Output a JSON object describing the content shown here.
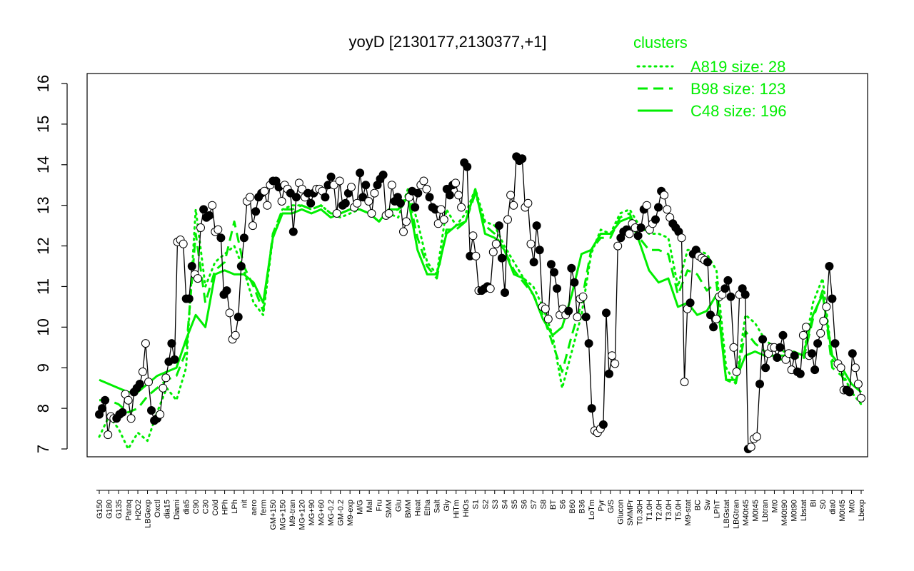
{
  "chart_data": {
    "type": "line",
    "title": "yoyD [2130177,2130377,+1]",
    "xlabel": "",
    "ylabel": "",
    "ylim": [
      7,
      16
    ],
    "yticks": [
      7,
      8,
      9,
      10,
      11,
      12,
      13,
      14,
      15,
      16
    ],
    "grid": false,
    "legend": {
      "title": "clusters",
      "placement": "top-right",
      "color": "#00ee00",
      "entries": [
        {
          "label": "A819 size: 28",
          "style": "dotted"
        },
        {
          "label": "B98 size: 123",
          "style": "dashed"
        },
        {
          "label": "C48 size: 196",
          "style": "solid"
        }
      ]
    },
    "x_tick_labels": [
      "G150",
      "G180",
      "G135",
      "Paraq",
      "H2O2",
      "LBGexp",
      "Oxctl",
      "dia15",
      "Diami",
      "dia5",
      "C90",
      "C30",
      "Cold",
      "HPh",
      "LPh",
      "nit",
      "aero",
      "ferm",
      "GM+150",
      "MG+150",
      "M9-tran",
      "MG+120",
      "MG+90",
      "MG+60",
      "MG-0.2",
      "GM-0.2",
      "M9-exp",
      "M/G",
      "Mal",
      "Fru",
      "SMM",
      "Glu",
      "BMM",
      "Heat",
      "Etha",
      "Salt",
      "Gly",
      "HiTm",
      "HiOs",
      "S1",
      "S2",
      "S3",
      "S4",
      "S5",
      "S6",
      "S7",
      "S8",
      "BT",
      "S6",
      "B60",
      "B36",
      "LoTm",
      "Pyr",
      "G/S",
      "Glucon",
      "SMMPr",
      "T0.30H",
      "T1.0H",
      "T2.0H",
      "T3.0H",
      "T5.0H",
      "M9-stat",
      "BC",
      "Sw",
      "LPhT",
      "LBGstat",
      "LBGtran",
      "M40t45",
      "M0t45",
      "Lbtran",
      "Mt0",
      "M40t90",
      "M0t90",
      "Lbstat",
      "BI",
      "S0",
      "dia0",
      "M0t45",
      "Mt0",
      "Lbexp"
    ],
    "series": [
      {
        "style": "solid",
        "color": "#000000",
        "marker_fill_pattern": [
          "black",
          "white"
        ],
        "values": [
          7.85,
          8.0,
          8.2,
          7.35,
          7.8,
          7.75,
          7.75,
          7.85,
          7.9,
          8.35,
          8.2,
          7.75,
          8.4,
          8.5,
          8.6,
          8.9,
          9.6,
          8.65,
          7.95,
          7.7,
          7.75,
          7.85,
          8.5,
          8.75,
          9.15,
          9.6,
          9.2,
          12.1,
          12.15,
          12.05,
          10.7,
          10.7,
          11.5,
          11.3,
          11.2,
          12.45,
          12.9,
          12.7,
          12.75,
          13.0,
          12.35,
          12.4,
          12.2,
          10.8,
          10.9,
          10.35,
          9.7,
          9.8,
          10.25,
          11.5,
          12.2,
          13.1,
          13.2,
          12.5,
          12.85,
          13.2,
          13.3,
          13.35,
          13.0,
          13.5,
          13.6,
          13.6,
          13.45,
          13.1,
          13.5,
          13.4,
          13.3,
          12.35,
          13.2,
          13.55,
          13.4,
          13.2,
          13.3,
          13.05,
          13.3,
          13.4,
          13.4,
          13.35,
          13.2,
          13.5,
          13.7,
          13.5,
          12.8,
          13.6,
          13.0,
          13.05,
          13.3,
          13.45,
          12.95,
          13.05,
          13.8,
          13.2,
          13.5,
          13.1,
          12.8,
          13.3,
          13.5,
          13.65,
          13.75,
          12.75,
          12.8,
          13.5,
          13.1,
          13.2,
          13.05,
          12.35,
          12.6,
          13.2,
          13.35,
          12.95,
          13.3,
          13.5,
          13.6,
          13.4,
          13.2,
          12.95,
          12.9,
          12.55,
          12.9,
          12.65,
          13.4,
          13.25,
          13.5,
          13.55,
          13.25,
          12.95,
          14.05,
          13.95,
          11.75,
          12.25,
          11.75,
          10.9,
          10.9,
          10.95,
          11.0,
          10.95,
          11.85,
          12.05,
          12.5,
          11.7,
          10.85,
          12.65,
          13.25,
          13.0,
          14.2,
          14.1,
          14.15,
          12.95,
          13.05,
          12.05,
          11.6,
          12.5,
          11.9,
          10.5,
          10.45,
          10.2,
          11.55,
          11.35,
          10.95,
          10.3,
          10.45,
          10.3,
          10.4,
          11.45,
          11.1,
          10.25,
          10.7,
          10.75,
          10.25,
          9.6,
          8.0,
          7.45,
          7.4,
          7.5,
          7.6,
          10.35,
          8.85,
          9.3,
          9.1,
          12.0,
          12.2,
          12.35,
          12.4,
          12.3,
          12.55,
          12.45,
          12.25,
          12.45,
          12.9,
          13.0,
          12.4,
          12.55,
          12.65,
          12.95,
          13.35,
          13.25,
          12.9,
          12.7,
          12.55,
          12.45,
          12.35,
          12.2,
          8.65,
          10.45,
          10.6,
          11.8,
          11.9,
          11.75,
          11.7,
          11.65,
          11.6,
          10.3,
          10.0,
          10.2,
          10.75,
          10.8,
          10.95,
          11.15,
          10.75,
          9.5,
          8.9,
          10.8,
          10.95,
          10.8,
          7.0,
          7.05,
          7.25,
          7.3,
          8.6,
          9.7,
          9.0,
          9.35,
          9.5,
          9.5,
          9.25,
          9.5,
          9.8,
          9.2,
          9.35,
          8.95,
          9.3,
          8.9,
          8.85,
          9.8,
          10.0,
          9.3,
          9.35,
          8.95,
          9.6,
          9.85,
          10.15,
          10.5,
          11.5,
          10.7,
          9.6,
          9.1,
          9.0,
          8.45,
          8.45,
          8.4,
          9.35,
          9.0,
          8.6,
          8.25
        ]
      },
      {
        "name": "A819 size: 28",
        "style": "dotted",
        "color": "#00ee00",
        "values": [
          7.3,
          7.8,
          7.5,
          7.0,
          7.4,
          7.2,
          7.9,
          8.5,
          8.2,
          9.0,
          12.9,
          11.0,
          11.6,
          11.8,
          12.0,
          11.4,
          10.6,
          10.3,
          12.2,
          12.9,
          13.0,
          13.0,
          12.9,
          13.0,
          12.8,
          12.7,
          12.8,
          12.9,
          12.8,
          12.6,
          12.8,
          12.7,
          13.4,
          12.6,
          11.6,
          11.3,
          12.9,
          12.5,
          12.8,
          13.4,
          12.6,
          12.5,
          12.0,
          11.6,
          11.2,
          11.0,
          10.5,
          9.8,
          8.5,
          9.4,
          10.3,
          11.8,
          12.4,
          12.3,
          12.8,
          12.9,
          12.5,
          12.3,
          12.3,
          12.2,
          11.0,
          11.9,
          11.9,
          11.8,
          11.4,
          9.0,
          8.6,
          10.3,
          10.1,
          9.7,
          9.5,
          9.4,
          9.4,
          9.3,
          10.6,
          11.2,
          9.2,
          8.9,
          8.4,
          8.1
        ]
      },
      {
        "name": "B98 size: 123",
        "style": "dashed",
        "color": "#00ee00",
        "values": [
          8.2,
          8.2,
          8.1,
          7.9,
          8.0,
          8.3,
          8.5,
          8.7,
          8.8,
          9.4,
          12.3,
          10.6,
          11.4,
          11.6,
          12.6,
          11.5,
          11.0,
          10.4,
          12.3,
          12.9,
          12.9,
          13.0,
          12.9,
          13.0,
          12.8,
          12.8,
          12.9,
          12.9,
          12.8,
          12.6,
          12.8,
          12.9,
          13.3,
          12.2,
          11.5,
          11.2,
          12.4,
          12.4,
          12.6,
          13.3,
          12.5,
          12.3,
          11.9,
          11.4,
          11.1,
          10.8,
          10.3,
          9.6,
          8.9,
          9.8,
          10.6,
          11.9,
          12.2,
          12.2,
          12.7,
          12.8,
          12.2,
          11.9,
          11.9,
          11.8,
          10.8,
          11.4,
          11.3,
          10.9,
          11.1,
          8.7,
          8.6,
          9.9,
          9.6,
          9.4,
          9.2,
          9.2,
          9.3,
          9.2,
          10.2,
          10.9,
          9.0,
          8.8,
          8.4,
          8.2
        ]
      },
      {
        "name": "C48 size: 196",
        "style": "solid",
        "color": "#00ee00",
        "values": [
          8.7,
          8.6,
          8.5,
          8.4,
          8.4,
          8.6,
          8.8,
          8.9,
          9.0,
          9.7,
          10.3,
          10.0,
          11.3,
          11.4,
          11.3,
          11.3,
          11.1,
          10.6,
          12.2,
          12.8,
          12.8,
          12.9,
          12.8,
          12.9,
          12.7,
          12.8,
          12.9,
          12.9,
          12.8,
          12.6,
          12.9,
          12.9,
          13.2,
          11.9,
          11.3,
          11.3,
          12.3,
          12.5,
          12.6,
          13.4,
          12.3,
          12.2,
          11.9,
          11.3,
          11.2,
          10.8,
          10.2,
          9.8,
          10.0,
          10.8,
          11.8,
          11.9,
          12.3,
          12.3,
          12.6,
          12.7,
          12.1,
          11.4,
          11.1,
          11.2,
          10.5,
          10.6,
          10.3,
          10.4,
          10.8,
          8.7,
          8.7,
          9.3,
          9.4,
          9.3,
          9.3,
          9.3,
          9.4,
          9.3,
          10.3,
          10.8,
          9.3,
          9.0,
          8.6,
          8.4
        ]
      }
    ]
  }
}
